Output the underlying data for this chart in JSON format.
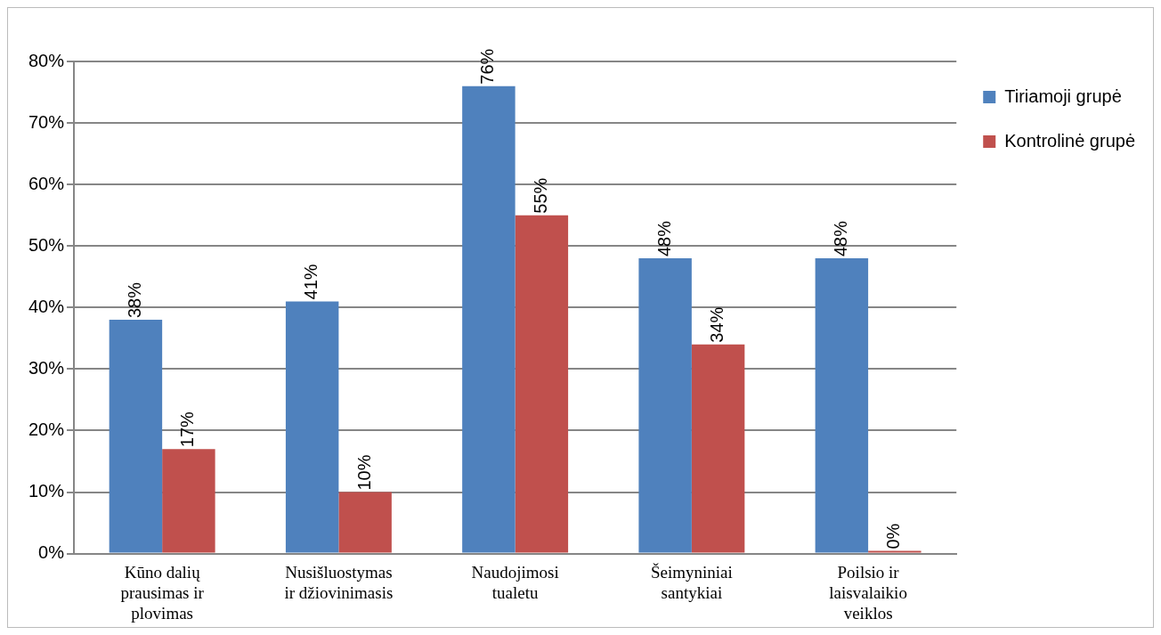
{
  "chart_data": {
    "type": "bar",
    "categories": [
      "Kūno dalių prausimas ir plovimas",
      "Nusišluostymas ir džiovinimasis",
      "Naudojimosi tualetu",
      "Šeimyniniai santykiai",
      "Poilsio ir laisvalaikio veiklos"
    ],
    "series": [
      {
        "name": "Tiriamoji grupė",
        "color": "#4f81bd",
        "values": [
          38,
          41,
          76,
          48,
          48
        ],
        "value_labels": [
          "38%",
          "41%",
          "76%",
          "48%",
          "48%"
        ]
      },
      {
        "name": "Kontrolinė grupė",
        "color": "#c0504d",
        "values": [
          17,
          10,
          55,
          34,
          0
        ],
        "value_labels": [
          "17%",
          "10%",
          "55%",
          "34%",
          "0%"
        ]
      }
    ],
    "ylim": [
      0,
      80
    ],
    "yticks": [
      {
        "value": 0,
        "label": "0%"
      },
      {
        "value": 10,
        "label": "10%"
      },
      {
        "value": 20,
        "label": "20%"
      },
      {
        "value": 30,
        "label": "30%"
      },
      {
        "value": 40,
        "label": "40%"
      },
      {
        "value": 50,
        "label": "50%"
      },
      {
        "value": 60,
        "label": "60%"
      },
      {
        "value": 70,
        "label": "70%"
      },
      {
        "value": 80,
        "label": "80%"
      }
    ],
    "grid": "y",
    "legend": "right"
  }
}
